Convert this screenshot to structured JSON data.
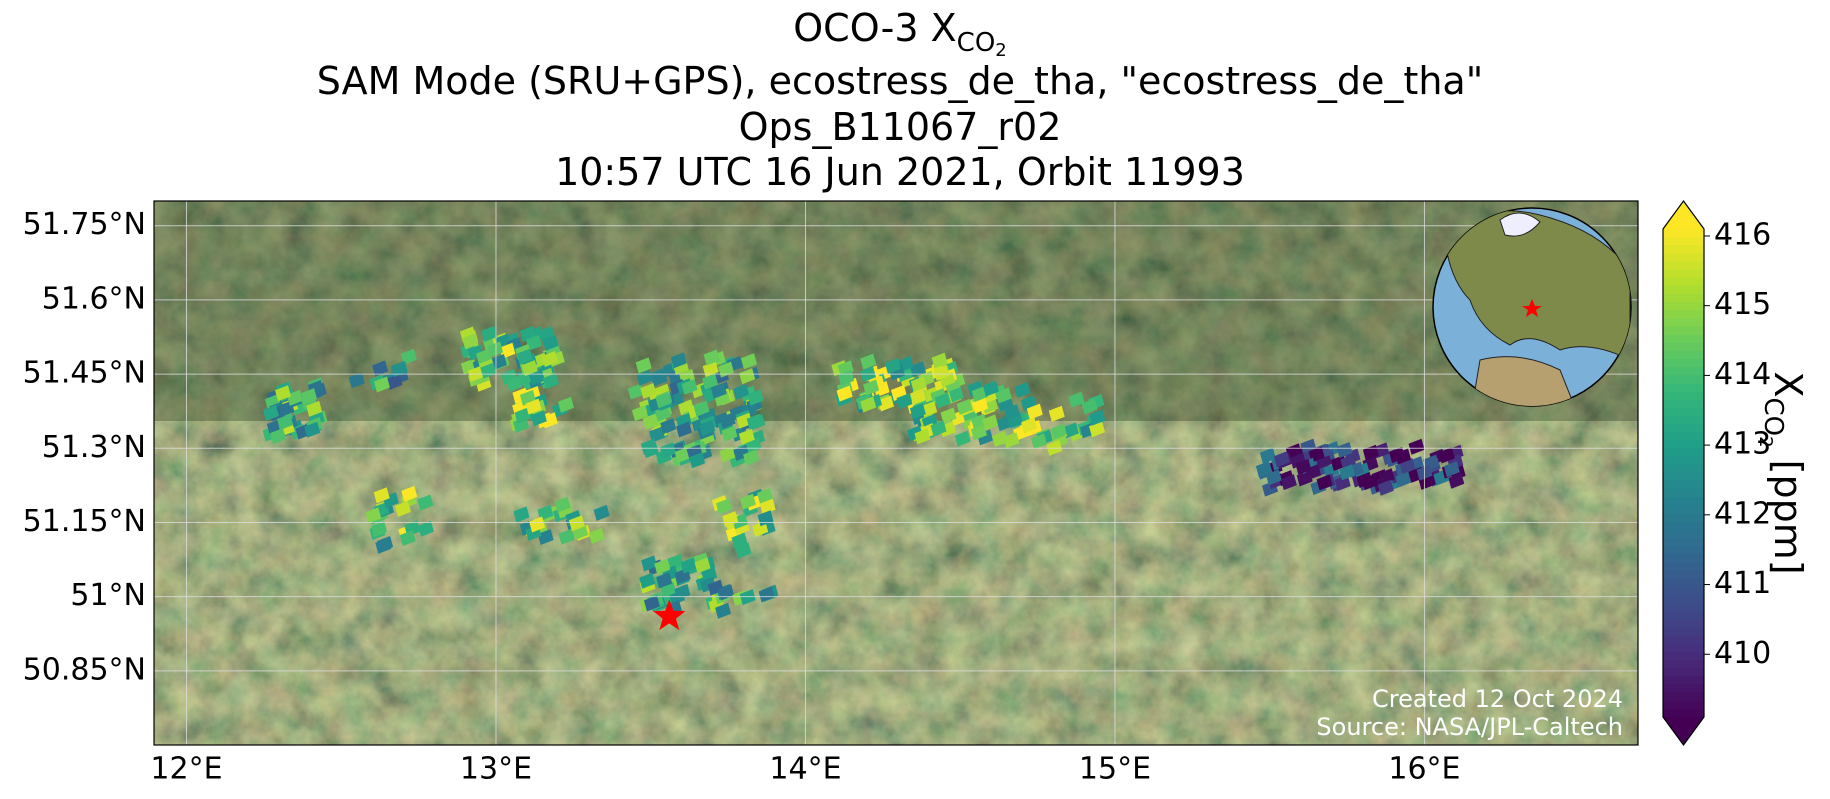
{
  "map": {
    "title": {
      "text": "OCO-3 X",
      "sub": "CO",
      "subsub": "2"
    },
    "subtitle_lines": [
      "SAM Mode (SRU+GPS), ecostress_de_tha, \"ecostress_de_tha\"",
      "Ops_B11067_r02",
      "10:57 UTC 16 Jun 2021, Orbit 11993"
    ],
    "xlim": [
      11.895,
      16.69
    ],
    "ylim": [
      50.7,
      51.8
    ],
    "xticks": [
      {
        "value": 12,
        "label": "12°E"
      },
      {
        "value": 13,
        "label": "13°E"
      },
      {
        "value": 14,
        "label": "14°E"
      },
      {
        "value": 15,
        "label": "15°E"
      },
      {
        "value": 16,
        "label": "16°E"
      }
    ],
    "yticks": [
      {
        "value": 50.85,
        "label": "50.85°N"
      },
      {
        "value": 51,
        "label": "51°N"
      },
      {
        "value": 51.15,
        "label": "51.15°N"
      },
      {
        "value": 51.3,
        "label": "51.3°N"
      },
      {
        "value": 51.45,
        "label": "51.45°N"
      },
      {
        "value": 51.6,
        "label": "51.6°N"
      },
      {
        "value": 51.75,
        "label": "51.75°N"
      }
    ],
    "grid": true,
    "site": {
      "lon": 13.56,
      "lat": 50.96,
      "color": "#ff0000"
    },
    "colorbar": {
      "label": {
        "text": "X",
        "sub": "CO",
        "subsub": "2",
        "unit": " [ppm]"
      },
      "clim": [
        409.1,
        416.1
      ],
      "ticks": [
        410,
        411,
        412,
        413,
        414,
        415,
        416
      ],
      "colormap": "viridis"
    },
    "annotations": [
      "Created 12 Oct 2024",
      "Source: NASA/JPL-Caltech"
    ]
  }
}
